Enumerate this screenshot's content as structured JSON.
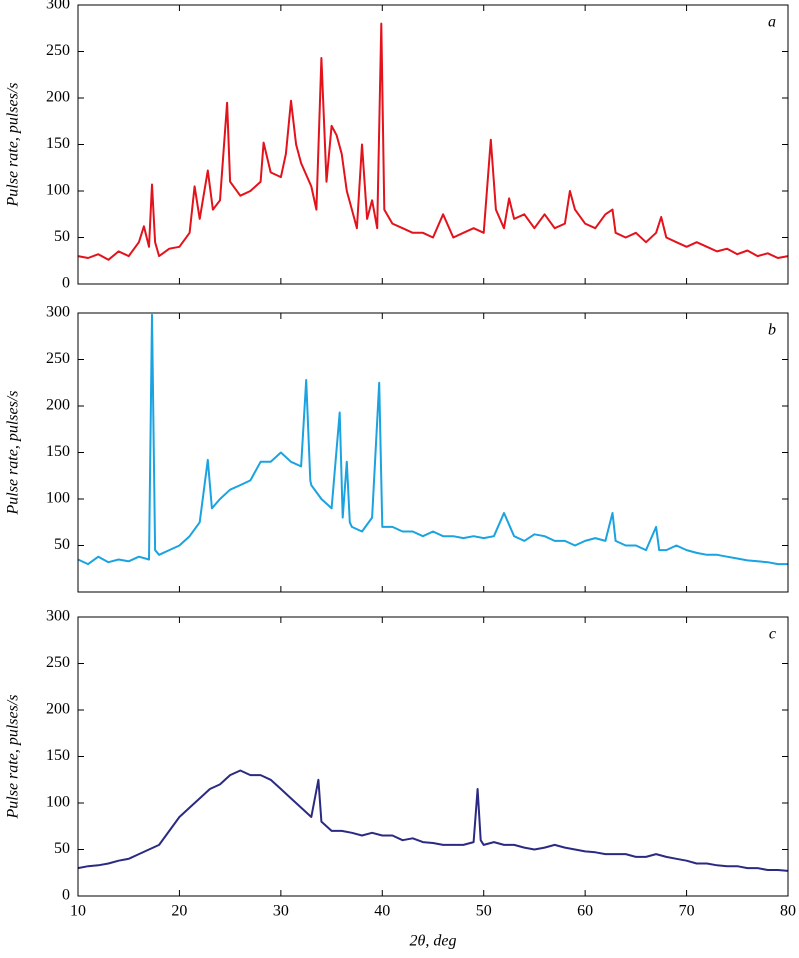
{
  "chart_data": [
    {
      "type": "line",
      "label": "a",
      "ylabel": "Pulse rate, pulses/s",
      "xlim": [
        10,
        80
      ],
      "ylim": [
        0,
        300
      ],
      "yticks": [
        0,
        50,
        100,
        150,
        200,
        250,
        300
      ],
      "series": [
        {
          "color": "#e3121b",
          "x": [
            10,
            11,
            12,
            13,
            14,
            15,
            16,
            16.5,
            17,
            17.3,
            17.6,
            18,
            19,
            20,
            21,
            21.5,
            22,
            22.8,
            23.3,
            24,
            24.7,
            25,
            26,
            27,
            28,
            28.3,
            29,
            30,
            30.5,
            31,
            31.5,
            32,
            33,
            33.5,
            34,
            34.5,
            35,
            35.5,
            36,
            36.5,
            37,
            37.5,
            38,
            38.5,
            39,
            39.5,
            39.9,
            40.2,
            41,
            42,
            43,
            44,
            45,
            46,
            47,
            48,
            49,
            50,
            50.7,
            51.2,
            52,
            52.5,
            53,
            54,
            55,
            56,
            57,
            58,
            58.5,
            59,
            60,
            61,
            62,
            62.7,
            63,
            64,
            65,
            66,
            67,
            67.5,
            68,
            69,
            70,
            71,
            72,
            73,
            74,
            75,
            76,
            77,
            78,
            79,
            80
          ],
          "values": [
            30,
            28,
            32,
            26,
            35,
            30,
            45,
            62,
            40,
            107,
            45,
            30,
            38,
            40,
            55,
            105,
            70,
            122,
            80,
            90,
            195,
            110,
            95,
            100,
            110,
            152,
            120,
            115,
            140,
            197,
            150,
            130,
            105,
            80,
            243,
            110,
            170,
            160,
            140,
            100,
            80,
            60,
            150,
            70,
            90,
            60,
            280,
            80,
            65,
            60,
            55,
            55,
            50,
            75,
            50,
            55,
            60,
            55,
            155,
            80,
            60,
            92,
            70,
            75,
            60,
            75,
            60,
            65,
            100,
            80,
            65,
            60,
            75,
            80,
            55,
            50,
            55,
            45,
            55,
            72,
            50,
            45,
            40,
            45,
            40,
            35,
            38,
            32,
            36,
            30,
            33,
            28,
            30
          ]
        }
      ]
    },
    {
      "type": "line",
      "label": "b",
      "ylabel": "Pulse rate, pulses/s",
      "xlim": [
        10,
        80
      ],
      "ylim": [
        0,
        300
      ],
      "yticks": [
        50,
        100,
        150,
        200,
        250,
        300
      ],
      "series": [
        {
          "color": "#1aa3e0",
          "x": [
            10,
            11,
            12,
            13,
            14,
            15,
            16,
            17,
            17.3,
            17.6,
            18,
            19,
            20,
            21,
            22,
            22.8,
            23.2,
            24,
            25,
            26,
            27,
            28,
            29,
            30,
            31,
            32,
            32.5,
            32.9,
            33,
            34,
            35,
            35.8,
            36.1,
            36.5,
            36.8,
            37,
            38,
            39,
            39.7,
            40,
            41,
            42,
            43,
            44,
            45,
            46,
            47,
            48,
            49,
            50,
            51,
            52,
            53,
            54,
            55,
            56,
            57,
            58,
            59,
            60,
            61,
            62,
            62.7,
            63,
            64,
            65,
            66,
            67,
            67.3,
            68,
            69,
            70,
            71,
            72,
            73,
            74,
            75,
            76,
            77,
            78,
            79,
            80
          ],
          "values": [
            35,
            30,
            38,
            32,
            35,
            33,
            38,
            35,
            298,
            45,
            40,
            45,
            50,
            60,
            75,
            142,
            90,
            100,
            110,
            115,
            120,
            140,
            140,
            150,
            140,
            135,
            228,
            120,
            115,
            100,
            90,
            193,
            80,
            140,
            75,
            70,
            65,
            80,
            225,
            70,
            70,
            65,
            65,
            60,
            65,
            60,
            60,
            58,
            60,
            58,
            60,
            85,
            60,
            55,
            62,
            60,
            55,
            55,
            50,
            55,
            58,
            55,
            85,
            55,
            50,
            50,
            45,
            70,
            45,
            45,
            50,
            45,
            42,
            40,
            40,
            38,
            36,
            34,
            33,
            32,
            30,
            30
          ]
        }
      ]
    },
    {
      "type": "line",
      "label": "c",
      "ylabel": "Pulse rate, pulses/s",
      "xlabel": "2θ, deg",
      "xlim": [
        10,
        80
      ],
      "ylim": [
        0,
        300
      ],
      "yticks": [
        0,
        50,
        100,
        150,
        200,
        250,
        300
      ],
      "xticks": [
        10,
        20,
        30,
        40,
        50,
        60,
        70,
        80
      ],
      "series": [
        {
          "color": "#2b2a83",
          "x": [
            10,
            11,
            12,
            13,
            14,
            15,
            16,
            17,
            18,
            19,
            20,
            21,
            22,
            23,
            24,
            25,
            26,
            27,
            28,
            29,
            30,
            31,
            32,
            33,
            33.7,
            34,
            35,
            36,
            37,
            38,
            39,
            40,
            41,
            42,
            43,
            44,
            45,
            46,
            47,
            48,
            49,
            49.4,
            49.7,
            50,
            51,
            52,
            53,
            54,
            55,
            56,
            57,
            58,
            59,
            60,
            61,
            62,
            63,
            64,
            65,
            66,
            67,
            68,
            69,
            70,
            71,
            72,
            73,
            74,
            75,
            76,
            77,
            78,
            79,
            80
          ],
          "values": [
            30,
            32,
            33,
            35,
            38,
            40,
            45,
            50,
            55,
            70,
            85,
            95,
            105,
            115,
            120,
            130,
            135,
            130,
            130,
            125,
            115,
            105,
            95,
            85,
            125,
            80,
            70,
            70,
            68,
            65,
            68,
            65,
            65,
            60,
            62,
            58,
            57,
            55,
            55,
            55,
            58,
            115,
            60,
            55,
            58,
            55,
            55,
            52,
            50,
            52,
            55,
            52,
            50,
            48,
            47,
            45,
            45,
            45,
            42,
            42,
            45,
            42,
            40,
            38,
            35,
            35,
            33,
            32,
            32,
            30,
            30,
            28,
            28,
            27
          ]
        }
      ]
    }
  ]
}
